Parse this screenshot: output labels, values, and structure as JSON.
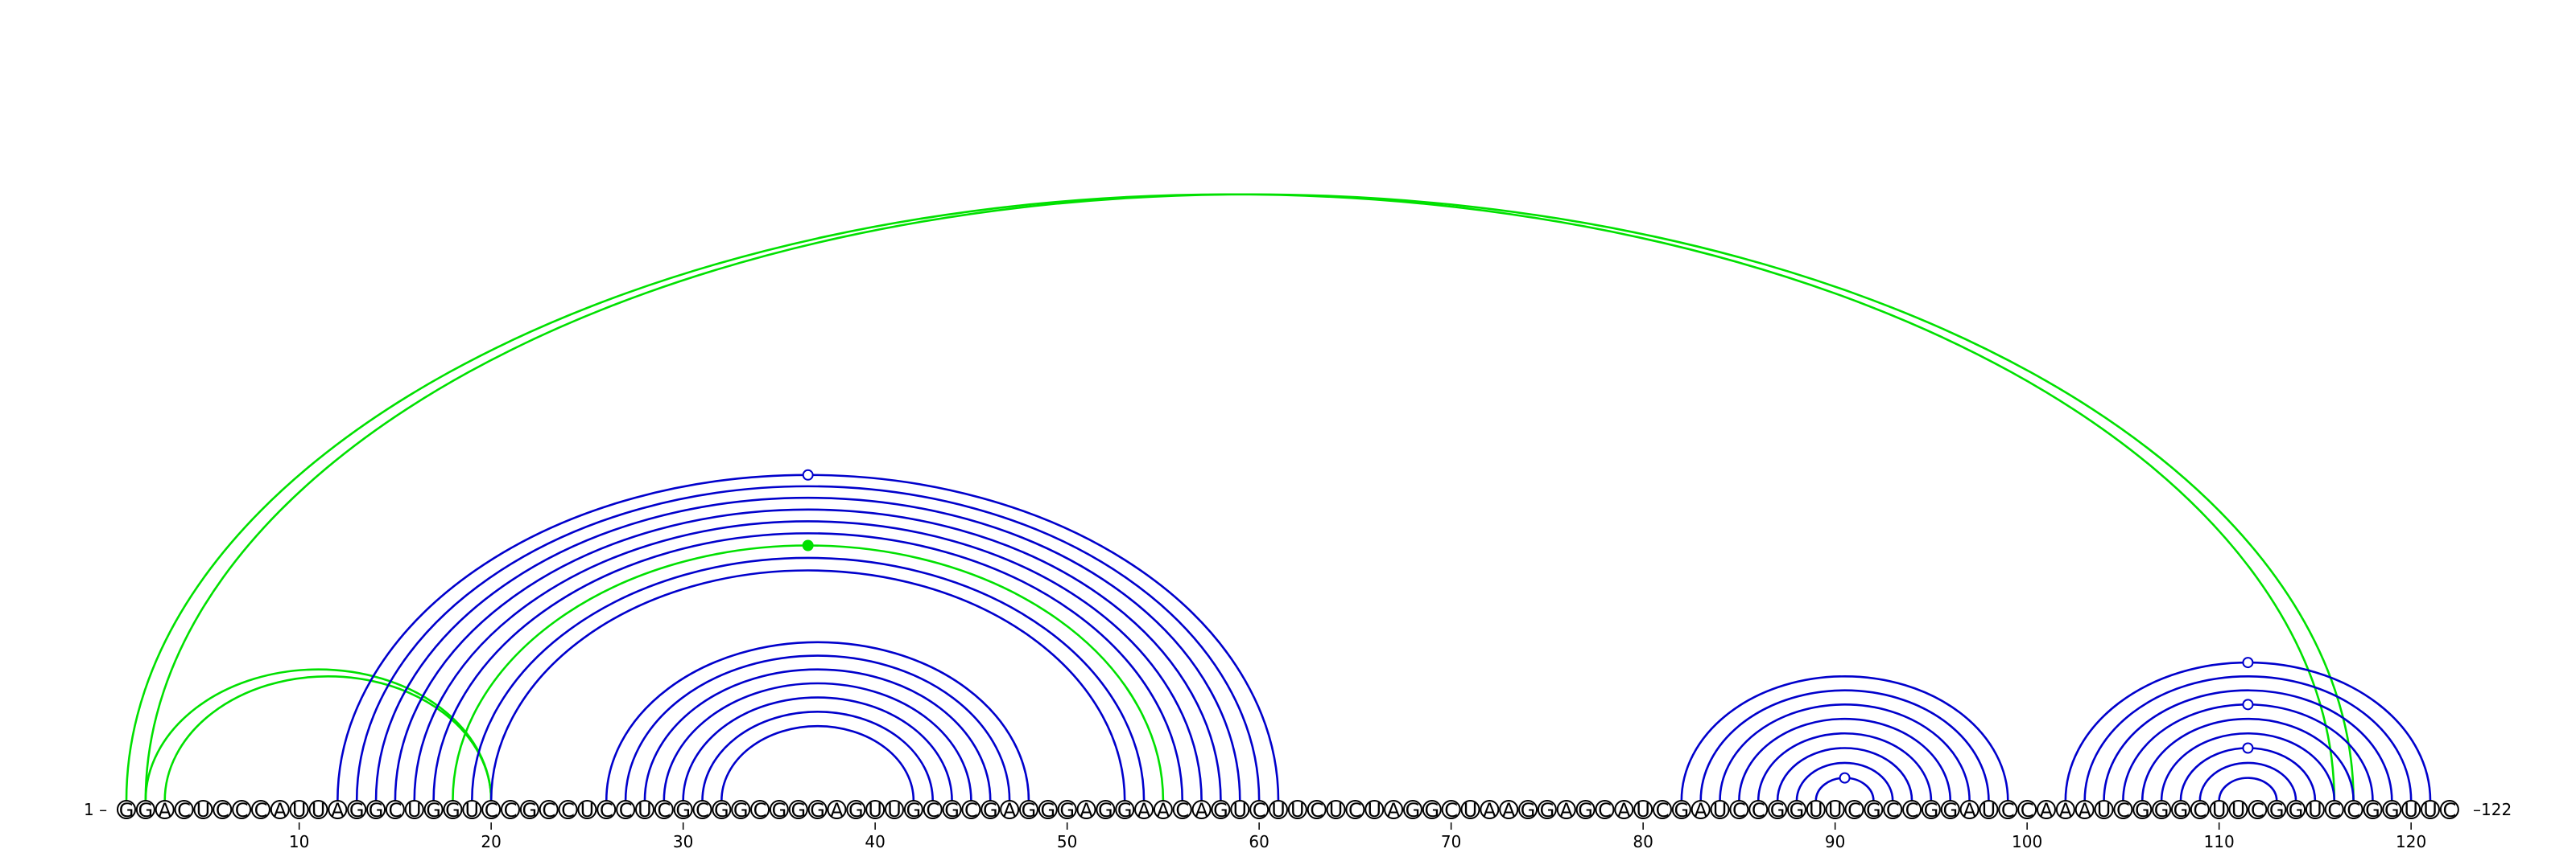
{
  "sequence": "GGACUCCCAUUAGGCUGGUCCGCCUCCUCGCGGCGGGAGUUGCGCGAGGGAGGAACAGUCUUCUCUAGGCUAAGGAGCAUCGAUCCGGUUCGCCGGAUCCAAAUCGGGCUUCGGUCCGGUUC",
  "start_label": "1 –",
  "end_label": "–122",
  "position_ticks": [
    10,
    20,
    30,
    40,
    50,
    60,
    70,
    80,
    90,
    100,
    110,
    120
  ],
  "colors": {
    "blue": "#0000cc",
    "green": "#00e000"
  },
  "arcs": [
    {
      "i": 1,
      "j": 116,
      "color": "green"
    },
    {
      "i": 2,
      "j": 117,
      "color": "green"
    },
    {
      "i": 3,
      "j": 20,
      "color": "green"
    },
    {
      "i": 2,
      "j": 20,
      "color": "green"
    },
    {
      "i": 12,
      "j": 61,
      "color": "blue"
    },
    {
      "i": 13,
      "j": 60,
      "color": "blue"
    },
    {
      "i": 14,
      "j": 59,
      "color": "blue"
    },
    {
      "i": 15,
      "j": 58,
      "color": "blue"
    },
    {
      "i": 16,
      "j": 57,
      "color": "blue"
    },
    {
      "i": 17,
      "j": 56,
      "color": "blue"
    },
    {
      "i": 18,
      "j": 55,
      "color": "green"
    },
    {
      "i": 19,
      "j": 54,
      "color": "blue"
    },
    {
      "i": 20,
      "j": 53,
      "color": "blue"
    },
    {
      "i": 26,
      "j": 48,
      "color": "blue"
    },
    {
      "i": 27,
      "j": 47,
      "color": "blue"
    },
    {
      "i": 28,
      "j": 46,
      "color": "blue"
    },
    {
      "i": 29,
      "j": 45,
      "color": "blue"
    },
    {
      "i": 30,
      "j": 44,
      "color": "blue"
    },
    {
      "i": 31,
      "j": 43,
      "color": "blue"
    },
    {
      "i": 32,
      "j": 42,
      "color": "blue"
    },
    {
      "i": 82,
      "j": 99,
      "color": "blue"
    },
    {
      "i": 83,
      "j": 98,
      "color": "blue"
    },
    {
      "i": 84,
      "j": 97,
      "color": "blue"
    },
    {
      "i": 85,
      "j": 96,
      "color": "blue"
    },
    {
      "i": 86,
      "j": 95,
      "color": "blue"
    },
    {
      "i": 87,
      "j": 94,
      "color": "blue"
    },
    {
      "i": 88,
      "j": 93,
      "color": "blue"
    },
    {
      "i": 89,
      "j": 92,
      "color": "blue"
    },
    {
      "i": 102,
      "j": 121,
      "color": "blue"
    },
    {
      "i": 103,
      "j": 120,
      "color": "blue"
    },
    {
      "i": 104,
      "j": 119,
      "color": "blue"
    },
    {
      "i": 105,
      "j": 118,
      "color": "blue"
    },
    {
      "i": 106,
      "j": 117,
      "color": "blue"
    },
    {
      "i": 107,
      "j": 116,
      "color": "blue"
    },
    {
      "i": 108,
      "j": 115,
      "color": "blue"
    },
    {
      "i": 109,
      "j": 114,
      "color": "blue"
    },
    {
      "i": 110,
      "j": 113,
      "color": "blue"
    }
  ],
  "markers": [
    {
      "pos": 36.5,
      "level": 61,
      "color": "blue",
      "filled": false
    },
    {
      "pos": 36.5,
      "level": 55,
      "color": "green",
      "filled": true
    },
    {
      "pos": 90.5,
      "level": 92,
      "color": "blue",
      "filled": false
    },
    {
      "pos": 111.5,
      "level": 121,
      "color": "blue",
      "filled": false
    },
    {
      "pos": 111.5,
      "level": 118,
      "color": "blue",
      "filled": false
    },
    {
      "pos": 111.5,
      "level": 115,
      "color": "blue",
      "filled": false
    }
  ]
}
